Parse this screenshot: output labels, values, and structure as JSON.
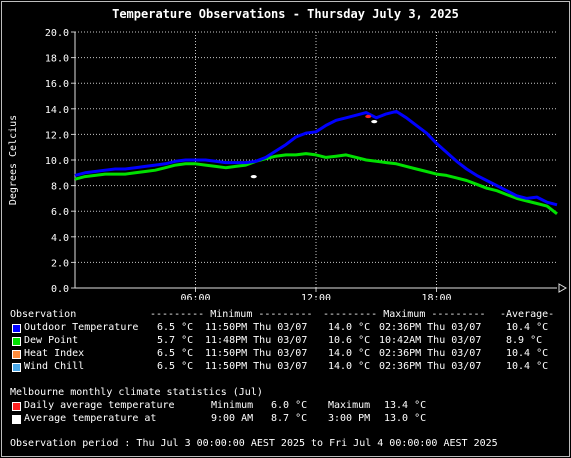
{
  "title": "Temperature Observations - Thursday July 3, 2025",
  "colors": {
    "outdoor": "#0000ff",
    "dewpoint": "#00e000",
    "heatindex": "#ff8c3c",
    "windchill": "#4aa8e8",
    "daily_avg_marker": "#ff2020",
    "avg_marker": "#ffffff",
    "grid": "#c8c8c8",
    "axis_text": "#ffffff"
  },
  "chart_data": {
    "type": "line",
    "title": "Temperature Observations - Thursday July 3, 2025",
    "ylabel": "Degrees Celcius",
    "xlabel": "",
    "ylim": [
      0,
      20
    ],
    "yticks": [
      "0.0",
      "2.0",
      "4.0",
      "6.0",
      "8.0",
      "10.0",
      "12.0",
      "14.0",
      "16.0",
      "18.0",
      "20.0"
    ],
    "xlim_hours": [
      0,
      24
    ],
    "xticks": [
      {
        "hour": 6,
        "label": "06:00"
      },
      {
        "hour": 12,
        "label": "12:00"
      },
      {
        "hour": 18,
        "label": "18:00"
      }
    ],
    "grid": true,
    "series": [
      {
        "name": "Outdoor Temperature",
        "color_key": "outdoor",
        "x_hours": [
          0,
          0.5,
          1,
          1.5,
          2,
          2.5,
          3,
          3.5,
          4,
          4.5,
          5,
          5.5,
          6,
          6.5,
          7,
          7.5,
          8,
          8.5,
          9,
          9.5,
          10,
          10.5,
          11,
          11.5,
          12,
          12.5,
          13,
          13.5,
          14,
          14.5,
          15,
          15.5,
          16,
          16.5,
          17,
          17.5,
          18,
          18.5,
          19,
          19.5,
          20,
          20.5,
          21,
          21.5,
          22,
          22.5,
          23,
          23.5,
          24
        ],
        "values": [
          8.8,
          9.0,
          9.1,
          9.2,
          9.3,
          9.3,
          9.4,
          9.5,
          9.6,
          9.7,
          9.9,
          10.0,
          10.0,
          10.0,
          9.9,
          9.8,
          9.8,
          9.8,
          9.9,
          10.2,
          10.7,
          11.2,
          11.8,
          12.1,
          12.2,
          12.7,
          13.1,
          13.3,
          13.5,
          13.7,
          13.3,
          13.6,
          13.8,
          13.3,
          12.7,
          12.1,
          11.3,
          10.6,
          9.9,
          9.3,
          8.8,
          8.4,
          8.0,
          7.6,
          7.2,
          7.0,
          7.1,
          6.7,
          6.5
        ]
      },
      {
        "name": "Dew Point",
        "color_key": "dewpoint",
        "x_hours": [
          0,
          0.5,
          1,
          1.5,
          2,
          2.5,
          3,
          3.5,
          4,
          4.5,
          5,
          5.5,
          6,
          6.5,
          7,
          7.5,
          8,
          8.5,
          9,
          9.5,
          10,
          10.5,
          11,
          11.5,
          12,
          12.5,
          13,
          13.5,
          14,
          14.5,
          15,
          15.5,
          16,
          16.5,
          17,
          17.5,
          18,
          18.5,
          19,
          19.5,
          20,
          20.5,
          21,
          21.5,
          22,
          22.5,
          23,
          23.5,
          24
        ],
        "values": [
          8.5,
          8.7,
          8.8,
          8.9,
          8.9,
          8.9,
          9.0,
          9.1,
          9.2,
          9.4,
          9.6,
          9.7,
          9.7,
          9.6,
          9.5,
          9.4,
          9.5,
          9.6,
          9.9,
          10.1,
          10.3,
          10.4,
          10.4,
          10.5,
          10.4,
          10.2,
          10.3,
          10.4,
          10.2,
          10.0,
          9.9,
          9.8,
          9.7,
          9.5,
          9.3,
          9.1,
          8.9,
          8.8,
          8.6,
          8.4,
          8.1,
          7.8,
          7.6,
          7.3,
          7.0,
          6.8,
          6.6,
          6.4,
          5.8
        ]
      }
    ],
    "markers": [
      {
        "name": "Daily average temperature",
        "hour": 14.6,
        "value": 13.4,
        "color_key": "daily_avg_marker"
      },
      {
        "name": "Daily average temperature",
        "hour": 8.9,
        "value": 8.7,
        "color_key": "avg_marker"
      },
      {
        "name": "Average temperature at",
        "hour": 14.9,
        "value": 13.0,
        "color_key": "avg_marker"
      }
    ]
  },
  "legend": {
    "header": {
      "observation": "Observation",
      "minimum": "--------- Minimum ---------",
      "maximum": "--------- Maximum ---------",
      "average": "-Average-"
    },
    "rows": [
      {
        "label": "Outdoor Temperature",
        "color_key": "outdoor",
        "min": "6.5 °C",
        "min_time": "11:50PM Thu 03/07",
        "max": "14.0 °C",
        "max_time": "02:36PM Thu 03/07",
        "avg": "10.4 °C"
      },
      {
        "label": "Dew Point",
        "color_key": "dewpoint",
        "min": "5.7 °C",
        "min_time": "11:48PM Thu 03/07",
        "max": "10.6 °C",
        "max_time": "10:42AM Thu 03/07",
        "avg": "8.9 °C"
      },
      {
        "label": "Heat Index",
        "color_key": "heatindex",
        "min": "6.5 °C",
        "min_time": "11:50PM Thu 03/07",
        "max": "14.0 °C",
        "max_time": "02:36PM Thu 03/07",
        "avg": "10.4 °C"
      },
      {
        "label": "Wind Chill",
        "color_key": "windchill",
        "min": "6.5 °C",
        "min_time": "11:50PM Thu 03/07",
        "max": "14.0 °C",
        "max_time": "02:36PM Thu 03/07",
        "avg": "10.4 °C"
      }
    ]
  },
  "climate": {
    "heading": "Melbourne monthly climate statistics (Jul)",
    "rows": [
      {
        "label": "Daily average temperature",
        "color_key": "daily_avg_marker",
        "c1": "Minimum",
        "c2": "6.0 °C",
        "c3": "Maximum",
        "c4": "13.4 °C"
      },
      {
        "label": "Average temperature at",
        "color_key": "avg_marker",
        "c1": "9:00 AM",
        "c2": "8.7 °C",
        "c3": "3:00 PM",
        "c4": "13.0 °C"
      }
    ]
  },
  "footer": "Observation period : Thu Jul 3 00:00:00 AEST 2025 to Fri Jul 4 00:00:00 AEST 2025"
}
